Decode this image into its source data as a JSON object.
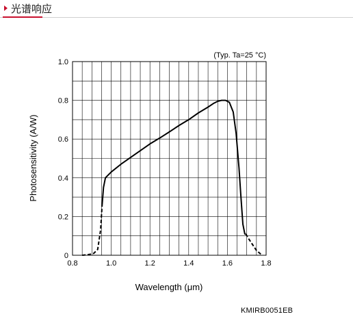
{
  "header": {
    "title": "光谱响应"
  },
  "chart_data": {
    "type": "line",
    "note": "(Typ. Ta=25 °C)",
    "xlabel": "Wavelength (μm)",
    "ylabel": "Photosensitivity (A/W)",
    "xlim": [
      0.8,
      1.8
    ],
    "ylim": [
      0,
      1.0
    ],
    "grid": true,
    "x_ticks": [
      "0.8",
      "1.0",
      "1.2",
      "1.4",
      "1.6",
      "1.8"
    ],
    "y_ticks": [
      "0",
      "0.2",
      "0.4",
      "0.6",
      "0.8",
      "1.0"
    ],
    "series": [
      {
        "style": "solid",
        "x": [
          0.953,
          0.96,
          0.97,
          1.0,
          1.05,
          1.1,
          1.15,
          1.2,
          1.25,
          1.3,
          1.35,
          1.4,
          1.45,
          1.5,
          1.53,
          1.55,
          1.57,
          1.59,
          1.61,
          1.63,
          1.645,
          1.66,
          1.67,
          1.68,
          1.69,
          1.695
        ],
        "y": [
          0.26,
          0.35,
          0.4,
          0.43,
          0.47,
          0.505,
          0.54,
          0.575,
          0.605,
          0.637,
          0.67,
          0.7,
          0.735,
          0.765,
          0.785,
          0.795,
          0.8,
          0.8,
          0.79,
          0.74,
          0.63,
          0.45,
          0.3,
          0.16,
          0.11,
          0.11
        ]
      },
      {
        "style": "dashed",
        "x": [
          0.85,
          0.87,
          0.89,
          0.91,
          0.93,
          0.945,
          0.953
        ],
        "y": [
          0.0,
          0.002,
          0.005,
          0.01,
          0.03,
          0.13,
          0.26
        ]
      },
      {
        "style": "dashed",
        "x": [
          1.695,
          1.71,
          1.73,
          1.75,
          1.77,
          1.78
        ],
        "y": [
          0.11,
          0.085,
          0.055,
          0.025,
          0.008,
          0.003
        ]
      }
    ]
  },
  "figure_code": "KMIRB0051EB"
}
